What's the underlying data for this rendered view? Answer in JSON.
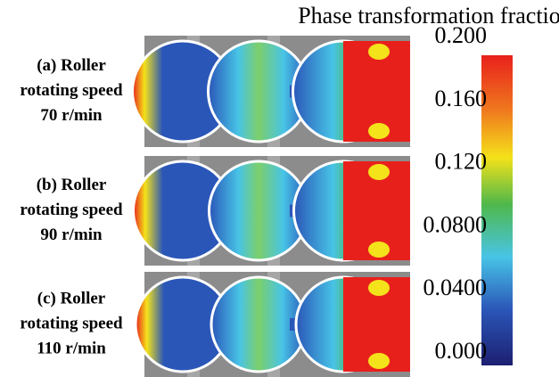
{
  "panels": [
    {
      "label_lines": [
        "(a) Roller",
        "rotating speed",
        "70 r/min"
      ]
    },
    {
      "label_lines": [
        "(b) Roller",
        "rotating speed",
        "90 r/min"
      ]
    },
    {
      "label_lines": [
        "(c) Roller",
        "rotating speed",
        "110 r/min"
      ]
    }
  ],
  "colorbar": {
    "title": "Phase transformation fraction",
    "ticks": [
      {
        "value": 0.2,
        "label": "0.200"
      },
      {
        "value": 0.16,
        "label": "0.160"
      },
      {
        "value": 0.12,
        "label": "0.120"
      },
      {
        "value": 0.08,
        "label": "0.0800"
      },
      {
        "value": 0.04,
        "label": "0.0400"
      },
      {
        "value": 0,
        "label": "0.000"
      }
    ]
  }
}
